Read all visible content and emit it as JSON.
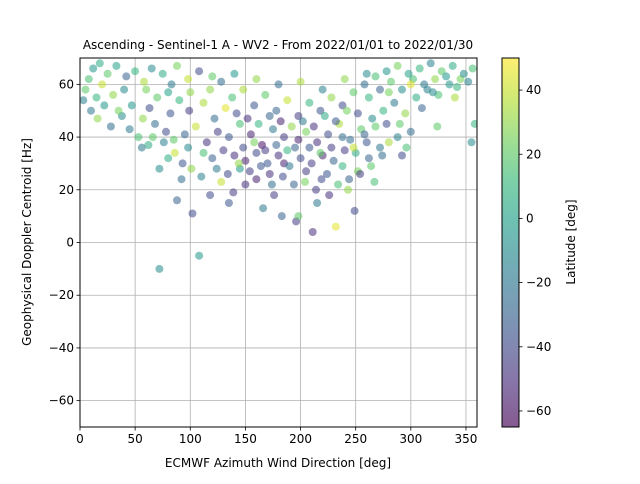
{
  "chart_data": {
    "type": "scatter",
    "title": "Ascending - Sentinel-1 A - WV2 - From 2022/01/01 to 2022/01/30",
    "xlabel": "ECMWF Azimuth Wind Direction [deg]",
    "ylabel": "Geophysical Doppler Centroid [Hz]",
    "xlim": [
      0,
      360
    ],
    "ylim": [
      -70,
      70
    ],
    "xticks": [
      0,
      50,
      100,
      150,
      200,
      250,
      300,
      350
    ],
    "yticks": [
      -60,
      -40,
      -20,
      0,
      20,
      40,
      60
    ],
    "grid": true,
    "colorbar": {
      "label": "Latitude [deg]",
      "range": [
        -65,
        50
      ],
      "ticks": [
        -60,
        -40,
        -20,
        0,
        20,
        40
      ],
      "colormap": [
        "#440154",
        "#482878",
        "#3e4989",
        "#31688e",
        "#26828e",
        "#1f9e89",
        "#35b779",
        "#6ece58",
        "#b5de2b",
        "#fde725"
      ]
    },
    "point_alpha": 0.55,
    "points": [
      [
        72,
        -10,
        -10
      ],
      [
        108,
        -5,
        -5
      ],
      [
        88,
        16,
        -30
      ],
      [
        102,
        11,
        -40
      ],
      [
        211,
        4,
        -50
      ],
      [
        196,
        8,
        -45
      ],
      [
        232,
        6,
        45
      ],
      [
        183,
        10,
        -30
      ],
      [
        249,
        12,
        -40
      ],
      [
        135,
        15,
        -35
      ],
      [
        166,
        13,
        -20
      ],
      [
        176,
        18,
        -45
      ],
      [
        198,
        10,
        20
      ],
      [
        355,
        38,
        -10
      ],
      [
        358,
        45,
        10
      ],
      [
        324,
        44,
        20
      ],
      [
        267,
        23,
        15
      ],
      [
        243,
        20,
        30
      ],
      [
        160,
        24,
        -55
      ],
      [
        150,
        22,
        -50
      ],
      [
        215,
        15,
        -20
      ],
      [
        226,
        18,
        -50
      ],
      [
        118,
        18,
        -40
      ],
      [
        139,
        19,
        -45
      ],
      [
        72,
        28,
        -10
      ],
      [
        80,
        32,
        5
      ],
      [
        92,
        24,
        -25
      ],
      [
        93,
        30,
        -35
      ],
      [
        101,
        28,
        30
      ],
      [
        110,
        25,
        -15
      ],
      [
        128,
        23,
        40
      ],
      [
        145,
        28,
        -5
      ],
      [
        172,
        26,
        -50
      ],
      [
        185,
        30,
        -55
      ],
      [
        205,
        27,
        -45
      ],
      [
        219,
        24,
        -40
      ],
      [
        238,
        29,
        10
      ],
      [
        252,
        27,
        25
      ],
      [
        262,
        32,
        -30
      ],
      [
        272,
        36,
        -20
      ],
      [
        280,
        38,
        35
      ],
      [
        288,
        40,
        -15
      ],
      [
        15,
        55,
        10
      ],
      [
        22,
        52,
        -5
      ],
      [
        30,
        56,
        30
      ],
      [
        38,
        48,
        -10
      ],
      [
        45,
        43,
        -20
      ],
      [
        53,
        40,
        15
      ],
      [
        62,
        37,
        5
      ],
      [
        68,
        45,
        -25
      ],
      [
        78,
        42,
        -40
      ],
      [
        85,
        39,
        20
      ],
      [
        95,
        41,
        -30
      ],
      [
        105,
        44,
        40
      ],
      [
        115,
        38,
        -50
      ],
      [
        125,
        42,
        -45
      ],
      [
        135,
        40,
        -35
      ],
      [
        145,
        45,
        15
      ],
      [
        155,
        41,
        -55
      ],
      [
        165,
        37,
        -60
      ],
      [
        175,
        43,
        -20
      ],
      [
        185,
        40,
        -45
      ],
      [
        195,
        36,
        -30
      ],
      [
        205,
        42,
        25
      ],
      [
        215,
        38,
        -50
      ],
      [
        225,
        41,
        -40
      ],
      [
        235,
        45,
        35
      ],
      [
        245,
        39,
        -25
      ],
      [
        255,
        43,
        20
      ],
      [
        265,
        47,
        -10
      ],
      [
        275,
        50,
        10
      ],
      [
        285,
        53,
        -20
      ],
      [
        295,
        49,
        30
      ],
      [
        305,
        55,
        5
      ],
      [
        315,
        58,
        -15
      ],
      [
        325,
        56,
        15
      ],
      [
        335,
        60,
        -5
      ],
      [
        345,
        62,
        25
      ],
      [
        8,
        62,
        15
      ],
      [
        12,
        66,
        -5
      ],
      [
        18,
        68,
        5
      ],
      [
        25,
        64,
        20
      ],
      [
        33,
        67,
        0
      ],
      [
        42,
        63,
        -30
      ],
      [
        50,
        65,
        10
      ],
      [
        58,
        61,
        35
      ],
      [
        65,
        66,
        -10
      ],
      [
        75,
        64,
        5
      ],
      [
        83,
        60,
        -20
      ],
      [
        88,
        67,
        25
      ],
      [
        98,
        62,
        40
      ],
      [
        108,
        65,
        -40
      ],
      [
        118,
        58,
        30
      ],
      [
        128,
        61,
        -25
      ],
      [
        138,
        55,
        15
      ],
      [
        148,
        58,
        35
      ],
      [
        158,
        52,
        -35
      ],
      [
        168,
        56,
        20
      ],
      [
        178,
        50,
        -30
      ],
      [
        188,
        54,
        40
      ],
      [
        198,
        48,
        -45
      ],
      [
        208,
        53,
        10
      ],
      [
        218,
        50,
        -35
      ],
      [
        228,
        55,
        30
      ],
      [
        238,
        52,
        -40
      ],
      [
        248,
        57,
        20
      ],
      [
        258,
        60,
        -25
      ],
      [
        268,
        63,
        15
      ],
      [
        278,
        65,
        -5
      ],
      [
        288,
        67,
        25
      ],
      [
        298,
        64,
        0
      ],
      [
        308,
        66,
        10
      ],
      [
        318,
        68,
        -15
      ],
      [
        328,
        65,
        20
      ],
      [
        338,
        67,
        5
      ],
      [
        348,
        64,
        -10
      ],
      [
        356,
        66,
        15
      ],
      [
        5,
        58,
        20
      ],
      [
        3,
        54,
        -15
      ],
      [
        28,
        44,
        -25
      ],
      [
        35,
        50,
        25
      ],
      [
        47,
        52,
        -5
      ],
      [
        57,
        47,
        30
      ],
      [
        63,
        51,
        -40
      ],
      [
        70,
        55,
        20
      ],
      [
        82,
        49,
        -35
      ],
      [
        90,
        54,
        10
      ],
      [
        99,
        50,
        -45
      ],
      [
        112,
        53,
        35
      ],
      [
        122,
        47,
        -25
      ],
      [
        132,
        51,
        45
      ],
      [
        142,
        49,
        -40
      ],
      [
        152,
        47,
        -50
      ],
      [
        162,
        45,
        10
      ],
      [
        172,
        48,
        -30
      ],
      [
        182,
        46,
        -55
      ],
      [
        192,
        44,
        30
      ],
      [
        202,
        46,
        -20
      ],
      [
        212,
        44,
        -50
      ],
      [
        222,
        48,
        5
      ],
      [
        232,
        46,
        -35
      ],
      [
        242,
        50,
        25
      ],
      [
        252,
        49,
        -40
      ],
      [
        262,
        55,
        10
      ],
      [
        272,
        58,
        -30
      ],
      [
        282,
        61,
        20
      ],
      [
        292,
        58,
        -10
      ],
      [
        302,
        62,
        15
      ],
      [
        312,
        60,
        -20
      ],
      [
        322,
        62,
        30
      ],
      [
        332,
        63,
        -5
      ],
      [
        342,
        59,
        10
      ],
      [
        352,
        61,
        -15
      ],
      [
        120,
        32,
        -30
      ],
      [
        130,
        35,
        -45
      ],
      [
        140,
        33,
        -50
      ],
      [
        150,
        31,
        -55
      ],
      [
        160,
        34,
        -40
      ],
      [
        170,
        30,
        -35
      ],
      [
        180,
        33,
        -50
      ],
      [
        190,
        29,
        -20
      ],
      [
        200,
        32,
        -40
      ],
      [
        210,
        30,
        -45
      ],
      [
        220,
        33,
        -55
      ],
      [
        230,
        31,
        -30
      ],
      [
        240,
        35,
        -45
      ],
      [
        250,
        34,
        5
      ],
      [
        260,
        38,
        -35
      ],
      [
        112,
        34,
        15
      ],
      [
        98,
        36,
        -10
      ],
      [
        86,
        34,
        40
      ],
      [
        76,
        38,
        -15
      ],
      [
        66,
        40,
        20
      ],
      [
        56,
        36,
        -20
      ],
      [
        124,
        28,
        -20
      ],
      [
        134,
        26,
        -40
      ],
      [
        144,
        30,
        30
      ],
      [
        154,
        27,
        -45
      ],
      [
        164,
        29,
        -35
      ],
      [
        174,
        22,
        -25
      ],
      [
        184,
        25,
        -40
      ],
      [
        194,
        22,
        -30
      ],
      [
        204,
        23,
        25
      ],
      [
        214,
        20,
        -45
      ],
      [
        224,
        26,
        -35
      ],
      [
        234,
        22,
        15
      ],
      [
        244,
        24,
        -30
      ],
      [
        254,
        26,
        -45
      ],
      [
        264,
        29,
        20
      ],
      [
        274,
        33,
        -25
      ],
      [
        148,
        36,
        -40
      ],
      [
        158,
        38,
        25
      ],
      [
        168,
        35,
        -45
      ],
      [
        178,
        37,
        -30
      ],
      [
        188,
        35,
        10
      ],
      [
        198,
        39,
        -55
      ],
      [
        208,
        36,
        -35
      ],
      [
        218,
        34,
        20
      ],
      [
        228,
        36,
        -45
      ],
      [
        238,
        40,
        -25
      ],
      [
        248,
        36,
        40
      ],
      [
        258,
        41,
        -30
      ],
      [
        268,
        44,
        20
      ],
      [
        278,
        45,
        -40
      ],
      [
        20,
        60,
        40
      ],
      [
        40,
        58,
        -10
      ],
      [
        60,
        58,
        25
      ],
      [
        80,
        57,
        0
      ],
      [
        100,
        57,
        30
      ],
      [
        120,
        63,
        20
      ],
      [
        140,
        64,
        -5
      ],
      [
        160,
        62,
        30
      ],
      [
        180,
        60,
        -25
      ],
      [
        200,
        61,
        35
      ],
      [
        220,
        58,
        -15
      ],
      [
        240,
        62,
        30
      ],
      [
        260,
        64,
        -10
      ],
      [
        280,
        57,
        25
      ],
      [
        300,
        60,
        45
      ],
      [
        320,
        57,
        -10
      ],
      [
        340,
        55,
        35
      ],
      [
        310,
        51,
        -30
      ],
      [
        290,
        45,
        20
      ],
      [
        300,
        42,
        -25
      ],
      [
        296,
        36,
        15
      ],
      [
        292,
        33,
        -40
      ],
      [
        10,
        50,
        -20
      ],
      [
        16,
        47,
        30
      ]
    ]
  }
}
